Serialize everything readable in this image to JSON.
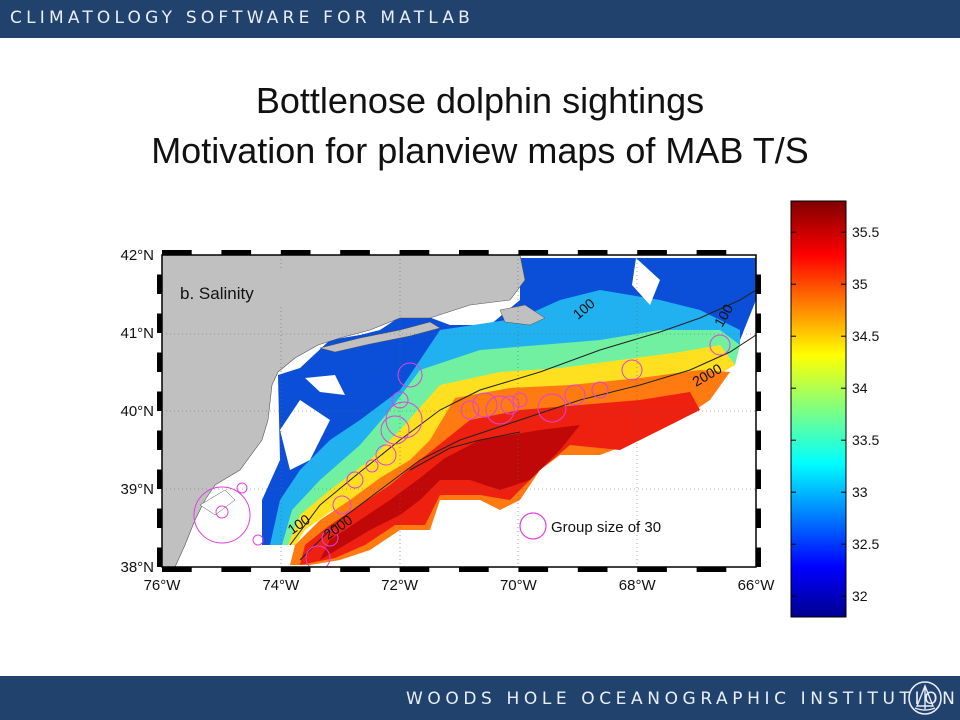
{
  "header": {
    "text": "CLIMATOLOGY SOFTWARE FOR MATLAB"
  },
  "slide": {
    "title_line1": "Bottlenose dolphin sightings",
    "title_line2": "Motivation for planview maps of MAB T/S"
  },
  "footer": {
    "text": "WOODS HOLE OCEANOGRAPHIC INSTITUTION"
  },
  "map": {
    "panel_label": "b. Salinity",
    "lon_ticks": [
      "76°W",
      "74°W",
      "72°W",
      "70°W",
      "68°W",
      "66°W"
    ],
    "lat_ticks": [
      "42°N",
      "41°N",
      "40°N",
      "39°N",
      "38°N"
    ],
    "lon_values": [
      -76,
      -74,
      -72,
      -70,
      -68,
      -66
    ],
    "lat_values": [
      42,
      41,
      40,
      39,
      38
    ],
    "contour_labels": [
      "100",
      "2000",
      "100",
      "2000"
    ],
    "legend": {
      "label": "Group size of 30",
      "group_size": 30
    },
    "land_color": "#c0c0c0",
    "marker_color": "#e040e0"
  },
  "colorbar": {
    "range": [
      31.8,
      35.8
    ],
    "ticks": [
      "35.5",
      "35",
      "34.5",
      "34",
      "33.5",
      "33",
      "32.5",
      "32"
    ],
    "tick_values": [
      35.5,
      35,
      34.5,
      34,
      33.5,
      33,
      32.5,
      32
    ],
    "colormap": "jet"
  }
}
